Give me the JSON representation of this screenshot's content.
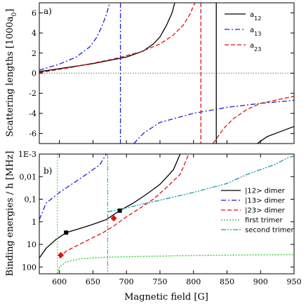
{
  "chart_data": [
    {
      "type": "line",
      "panel_label": "a)",
      "ylabel": "Scattering lengths [1000a",
      "ylabel_sub": "0",
      "ylabel_end": "]",
      "xlim": [
        570,
        950
      ],
      "ylim": [
        -7,
        7
      ],
      "yticks": [
        -6,
        -4,
        -2,
        0,
        2,
        4,
        6
      ],
      "xticks": [
        600,
        650,
        700,
        750,
        800,
        850,
        900,
        950
      ],
      "zero_line": true,
      "legend": "top-right",
      "resonances": [
        {
          "series": "a13",
          "B": 691
        },
        {
          "series": "a23",
          "B": 811
        },
        {
          "series": "a12",
          "B": 834
        }
      ],
      "series": [
        {
          "key": "a12",
          "name": "a",
          "sub": "12",
          "color": "#000000",
          "dash": "solid",
          "points": [
            [
              570,
              0.15
            ],
            [
              600,
              0.45
            ],
            [
              650,
              0.95
            ],
            [
              700,
              1.6
            ],
            [
              725,
              2.2
            ],
            [
              740,
              2.9
            ],
            [
              750,
              3.6
            ],
            [
              760,
              4.8
            ],
            [
              768,
              6.0
            ],
            [
              772,
              7.0
            ],
            [
              895,
              -7.0
            ],
            [
              910,
              -6.3
            ],
            [
              930,
              -5.8
            ],
            [
              950,
              -5.3
            ]
          ]
        },
        {
          "key": "a13",
          "name": "a",
          "sub": "13",
          "color": "#1f1fd0",
          "dash": "dashdot",
          "points": [
            [
              570,
              0.3
            ],
            [
              600,
              0.9
            ],
            [
              625,
              1.6
            ],
            [
              645,
              2.6
            ],
            [
              655,
              3.5
            ],
            [
              663,
              4.6
            ],
            [
              670,
              5.8
            ],
            [
              675,
              7.0
            ],
            [
              711,
              -7.0
            ],
            [
              725,
              -6.0
            ],
            [
              750,
              -4.9
            ],
            [
              800,
              -4.0
            ],
            [
              850,
              -3.4
            ],
            [
              900,
              -3.0
            ],
            [
              950,
              -2.7
            ]
          ]
        },
        {
          "key": "a23",
          "name": "a",
          "sub": "23",
          "color": "#e01010",
          "dash": "dash",
          "points": [
            [
              570,
              0.05
            ],
            [
              620,
              0.6
            ],
            [
              680,
              1.4
            ],
            [
              720,
              2.1
            ],
            [
              750,
              2.9
            ],
            [
              770,
              3.8
            ],
            [
              785,
              4.8
            ],
            [
              795,
              5.9
            ],
            [
              802,
              7.0
            ],
            [
              829,
              -7.0
            ],
            [
              845,
              -5.5
            ],
            [
              860,
              -4.5
            ],
            [
              880,
              -3.6
            ],
            [
              900,
              -3.0
            ],
            [
              950,
              -2.3
            ]
          ]
        }
      ]
    },
    {
      "type": "line",
      "panel_label": "b)",
      "ylabel": "Binding energies / h [MHz]",
      "xlabel": "Magnetic field [G]",
      "xlim": [
        570,
        950
      ],
      "yscale": "log-inverted",
      "ylim": [
        0.001,
        200
      ],
      "ytick_values": [
        0.001,
        0.01,
        0.1,
        1,
        10,
        100
      ],
      "yticks": [
        "1E-3",
        "0,01",
        "0,1",
        "1",
        "10",
        "100"
      ],
      "xticks": [
        "600",
        "650",
        "700",
        "750",
        "800",
        "850",
        "900",
        "950"
      ],
      "legend": "right",
      "series": [
        {
          "key": "d12",
          "name": "|12> dimer",
          "color": "#000000",
          "dash": "solid",
          "points": [
            [
              570,
              40
            ],
            [
              580,
              15
            ],
            [
              595,
              6
            ],
            [
              610,
              3
            ],
            [
              630,
              2
            ],
            [
              650,
              1.3
            ],
            [
              670,
              0.8
            ],
            [
              690,
              0.32
            ],
            [
              710,
              0.15
            ],
            [
              730,
              0.06
            ],
            [
              750,
              0.022
            ],
            [
              770,
              0.005
            ],
            [
              780,
              0.001
            ]
          ]
        },
        {
          "key": "d13",
          "name": "|13> dimer",
          "color": "#1f1fd0",
          "dash": "dashdot",
          "points": [
            [
              570,
              0.8
            ],
            [
              580,
              0.15
            ],
            [
              600,
              0.05
            ],
            [
              620,
              0.02
            ],
            [
              640,
              0.008
            ],
            [
              660,
              0.003
            ],
            [
              670,
              0.001
            ]
          ]
        },
        {
          "key": "d23",
          "name": "|23> dimer",
          "color": "#e01010",
          "dash": "dash",
          "points": [
            [
              600,
              40
            ],
            [
              610,
              20
            ],
            [
              630,
              10
            ],
            [
              650,
              5
            ],
            [
              665,
              3
            ],
            [
              680,
              1.6
            ],
            [
              700,
              0.6
            ],
            [
              720,
              0.25
            ],
            [
              740,
              0.1
            ],
            [
              760,
              0.03
            ],
            [
              780,
              0.008
            ],
            [
              793,
              0.001
            ]
          ]
        },
        {
          "key": "t1",
          "name": "first trimer",
          "color": "#22cc22",
          "dash": "dot",
          "points": [
            [
              597,
              200
            ],
            [
              600,
              100
            ],
            [
              610,
              60
            ],
            [
              630,
              44
            ],
            [
              660,
              38
            ],
            [
              700,
              35
            ],
            [
              800,
              31
            ],
            [
              900,
              29
            ],
            [
              950,
              28.5
            ]
          ],
          "vline": 597
        },
        {
          "key": "t2",
          "name": "second trimer",
          "color": "#1a9aaa",
          "dash": "dashdotdot",
          "points": [
            [
              672,
              0.36
            ],
            [
              700,
              0.24
            ],
            [
              750,
              0.11
            ],
            [
              800,
              0.05
            ],
            [
              850,
              0.02
            ],
            [
              880,
              0.008
            ],
            [
              920,
              0.003
            ],
            [
              940,
              0.0015
            ],
            [
              950,
              0.0012
            ]
          ],
          "vline": 672
        }
      ],
      "markers": [
        {
          "series": "d12",
          "shape": "square",
          "color": "#000000",
          "points": [
            [
              610,
              3
            ],
            [
              690,
              0.32
            ]
          ]
        },
        {
          "series": "d23",
          "shape": "diamond",
          "color": "#e01010",
          "points": [
            [
              602,
              30
            ],
            [
              681,
              0.7
            ]
          ]
        }
      ]
    }
  ]
}
